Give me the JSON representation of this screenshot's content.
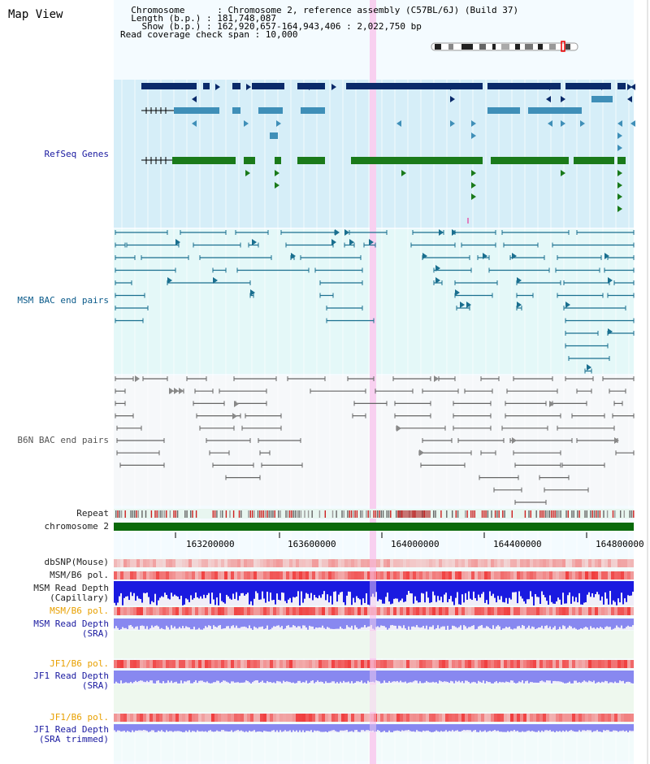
{
  "header": {
    "title": "Map View",
    "info_lines": [
      "  Chromosome      : Chromosome 2, reference assembly (C57BL/6J) (Build 37)",
      "  Length (b.p.) : 181,748,087",
      "    Show (b.p.) : 162,920,657-164,943,406 : 2,022,750 bp",
      "Read coverage check span : 10,000"
    ]
  },
  "tracks": {
    "refseq": "RefSeq Genes",
    "msm_bac": "MSM BAC end pairs",
    "b6n_bac": "B6N BAC end pairs",
    "repeat": "Repeat",
    "chromosome": "chromosome 2",
    "dbsnp": "dbSNP(Mouse)",
    "msm_b6_pol": "MSM/B6 pol.",
    "msm_read_depth_cap_1": "MSM Read Depth",
    "msm_read_depth_cap_2": "(Capillary)",
    "msm_b6_pol_2": "MSM/B6 pol.",
    "msm_read_depth_sra_1": "MSM Read Depth",
    "msm_read_depth_sra_2": "(SRA)",
    "jf1_b6_pol": "JF1/B6 pol.",
    "jf1_read_depth_sra_1": "JF1 Read Depth",
    "jf1_read_depth_sra_2": "(SRA)",
    "jf1_b6_pol_2": "JF1/B6 pol.",
    "jf1_read_depth_trim_1": "JF1 Read Depth",
    "jf1_read_depth_trim_2": "(SRA trimmed)"
  },
  "axis": {
    "ticks": [
      "163200000",
      "163600000",
      "164000000",
      "164400000",
      "164800000"
    ]
  },
  "colors": {
    "gene_dark": "#0a2a6a",
    "gene_mid": "#3f8fb8",
    "gene_green": "#1a7a1a",
    "msm_bac": "#1a6f8f",
    "b6n_bac": "#666666",
    "track_bg_blue": "#d6eef8",
    "track_bg_cyan": "#e4f8f8",
    "highlight": "#f8d0f0",
    "chrom_green": "#0a6a0a",
    "snp_red": "#f07070",
    "depth_blue": "#1a1ae0",
    "depth_lav": "#8888f0"
  }
}
